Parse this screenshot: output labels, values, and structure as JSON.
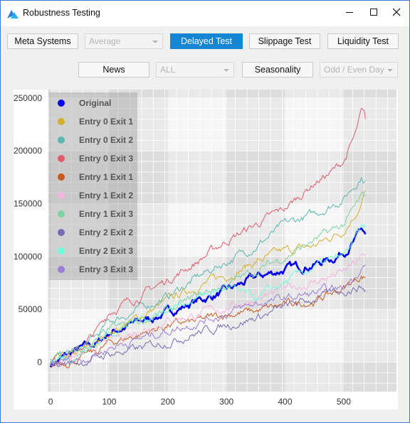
{
  "window": {
    "title": "Robustness Testing"
  },
  "toolbar1": {
    "meta_systems": "Meta Systems",
    "average": "Average",
    "delayed_test": "Delayed Test",
    "slippage_test": "Slippage Test",
    "liquidity_test": "Liquidity Test"
  },
  "toolbar2": {
    "news": "News",
    "all": "ALL",
    "seasonality": "Seasonality",
    "odd_even": "Odd / Even Day"
  },
  "colors": {
    "accent": "#1486d4",
    "window_border": "#3a7bd5"
  },
  "chart_data": {
    "type": "line",
    "title": "",
    "xlabel": "",
    "ylabel": "",
    "xlim": [
      -5,
      590
    ],
    "ylim": [
      -28000,
      258000
    ],
    "xticks": [
      0,
      100,
      200,
      300,
      400,
      500
    ],
    "yticks": [
      0,
      50000,
      100000,
      150000,
      200000,
      250000
    ],
    "xtick_labels": [
      "0",
      "100",
      "200",
      "300",
      "400",
      "500"
    ],
    "ytick_labels": [
      "0",
      "50000",
      "100000",
      "150000",
      "200000",
      "250000"
    ],
    "grid": true,
    "legend_position": "top-left",
    "series": [
      {
        "name": "Original",
        "color": "#0000ee",
        "width": 2.6,
        "x": [
          0,
          20,
          50,
          80,
          100,
          150,
          200,
          250,
          300,
          350,
          400,
          450,
          480,
          500,
          520,
          530,
          537
        ],
        "values": [
          -2000,
          4000,
          12000,
          18000,
          28000,
          38000,
          47000,
          58000,
          67000,
          80000,
          88000,
          93000,
          98000,
          105000,
          116000,
          125000,
          121000
        ]
      },
      {
        "name": "Entry 0 Exit 1",
        "color": "#d4b02c",
        "width": 1,
        "x": [
          0,
          50,
          80,
          100,
          150,
          200,
          250,
          300,
          350,
          400,
          450,
          500,
          530,
          537
        ],
        "values": [
          -1000,
          8000,
          18000,
          28000,
          42000,
          58000,
          72000,
          82000,
          95000,
          105000,
          110000,
          125000,
          150000,
          162000
        ]
      },
      {
        "name": "Entry 0 Exit 2",
        "color": "#5cb8b0",
        "width": 1,
        "x": [
          0,
          50,
          80,
          100,
          150,
          200,
          250,
          300,
          350,
          400,
          450,
          500,
          530,
          537
        ],
        "values": [
          2000,
          12000,
          25000,
          38000,
          50000,
          62000,
          80000,
          95000,
          110000,
          130000,
          140000,
          155000,
          176000,
          172000
        ]
      },
      {
        "name": "Entry 0 Exit 3",
        "color": "#e05c6c",
        "width": 1,
        "x": [
          0,
          50,
          80,
          100,
          150,
          200,
          250,
          300,
          350,
          400,
          450,
          480,
          500,
          520,
          530,
          537
        ],
        "values": [
          -1000,
          12000,
          30000,
          48000,
          62000,
          78000,
          95000,
          115000,
          130000,
          145000,
          170000,
          180000,
          190000,
          215000,
          235000,
          230000
        ]
      },
      {
        "name": "Entry 1 Exit 1",
        "color": "#c85a1e",
        "width": 1,
        "x": [
          0,
          50,
          80,
          100,
          150,
          200,
          250,
          300,
          350,
          400,
          450,
          500,
          530,
          537
        ],
        "values": [
          -3000,
          4000,
          10000,
          18000,
          26000,
          35000,
          38000,
          46000,
          48000,
          54000,
          58000,
          70000,
          82000,
          80000
        ]
      },
      {
        "name": "Entry 1 Exit 2",
        "color": "#f5b2dc",
        "width": 1,
        "x": [
          0,
          50,
          80,
          100,
          150,
          200,
          250,
          300,
          350,
          400,
          450,
          500,
          530,
          537
        ],
        "values": [
          -2000,
          5000,
          14000,
          20000,
          30000,
          40000,
          45000,
          52000,
          60000,
          68000,
          76000,
          85000,
          98000,
          100000
        ]
      },
      {
        "name": "Entry 1 Exit 3",
        "color": "#7cd2a4",
        "width": 1,
        "x": [
          0,
          50,
          80,
          100,
          150,
          200,
          250,
          300,
          350,
          400,
          450,
          500,
          530,
          537
        ],
        "values": [
          0,
          10000,
          20000,
          30000,
          38000,
          48000,
          62000,
          74000,
          86000,
          100000,
          115000,
          130000,
          155000,
          158000
        ]
      },
      {
        "name": "Entry 2 Exit 2",
        "color": "#7a6ab4",
        "width": 1,
        "x": [
          0,
          50,
          80,
          100,
          150,
          200,
          250,
          300,
          350,
          400,
          450,
          500,
          530,
          537
        ],
        "values": [
          -2000,
          0,
          4000,
          8000,
          12000,
          20000,
          28000,
          35000,
          42000,
          52000,
          60000,
          68000,
          72000,
          68000
        ]
      },
      {
        "name": "Entry 2 Exit 3",
        "color": "#6effdc",
        "width": 1,
        "x": [
          0,
          50,
          80,
          100,
          150,
          200,
          250,
          300,
          350,
          400,
          450,
          500,
          530,
          537
        ],
        "values": [
          0,
          8000,
          18000,
          28000,
          40000,
          50000,
          62000,
          70000,
          60000,
          75000,
          90000,
          100000,
          125000,
          128000
        ]
      },
      {
        "name": "Entry 3 Exit 3",
        "color": "#9b7ed6",
        "width": 1,
        "x": [
          0,
          50,
          80,
          100,
          150,
          200,
          250,
          300,
          350,
          400,
          450,
          500,
          530,
          537
        ],
        "values": [
          -1000,
          3000,
          8000,
          14000,
          22000,
          30000,
          38000,
          46000,
          55000,
          60000,
          65000,
          70000,
          90000,
          92000
        ]
      }
    ]
  }
}
